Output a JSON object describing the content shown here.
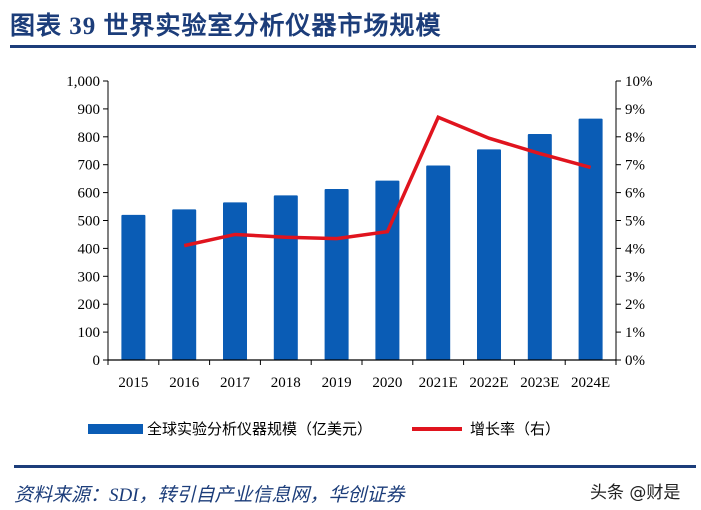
{
  "title": "图表 39   世界实验室分析仪器市场规模",
  "source": "资料来源：SDI，转引自产业信息网，华创证券",
  "watermark": "头条 @财是",
  "colors": {
    "bar": "#0a5cb5",
    "line": "#e0141e",
    "title": "#1c3d7a"
  },
  "chart_data": {
    "type": "bar+line",
    "categories": [
      "2015",
      "2016",
      "2017",
      "2018",
      "2019",
      "2020",
      "2021E",
      "2022E",
      "2023E",
      "2024E"
    ],
    "series": [
      {
        "name": "全球实验分析仪器规模（亿美元）",
        "type": "bar",
        "axis": "left",
        "values": [
          520,
          540,
          565,
          590,
          613,
          643,
          697,
          755,
          810,
          865
        ]
      },
      {
        "name": "增长率（右）",
        "type": "line",
        "axis": "right",
        "values": [
          null,
          4.1,
          4.5,
          4.4,
          4.35,
          4.6,
          8.7,
          7.95,
          7.4,
          6.9
        ]
      }
    ],
    "ylim_left": [
      0,
      1000
    ],
    "yticks_left": [
      "0",
      "100",
      "200",
      "300",
      "400",
      "500",
      "600",
      "700",
      "800",
      "900",
      "1,000"
    ],
    "ylim_right": [
      0,
      10
    ],
    "yticks_right": [
      "0%",
      "1%",
      "2%",
      "3%",
      "4%",
      "5%",
      "6%",
      "7%",
      "8%",
      "9%",
      "10%"
    ],
    "grid": false,
    "legend": "bottom"
  }
}
